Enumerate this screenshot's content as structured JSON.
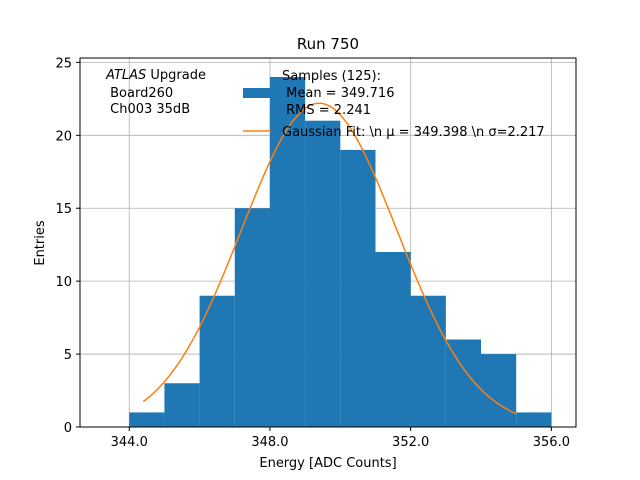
{
  "chart_data": {
    "type": "bar",
    "title": "Run 750",
    "xlabel": "Energy [ADC Counts]",
    "ylabel": "Entries",
    "xlim": [
      342.6,
      356.7
    ],
    "ylim": [
      0,
      25.3
    ],
    "xticks": [
      344.0,
      348.0,
      352.0,
      356.0
    ],
    "xtick_labels": [
      "344.0",
      "348.0",
      "352.0",
      "356.0"
    ],
    "yticks": [
      0,
      5,
      10,
      15,
      20,
      25
    ],
    "ytick_labels": [
      "0",
      "5",
      "10",
      "15",
      "20",
      "25"
    ],
    "grid": true,
    "histogram": {
      "bin_edges": [
        344,
        345,
        346,
        347,
        348,
        349,
        350,
        351,
        352,
        353,
        354,
        355,
        356
      ],
      "counts": [
        1,
        3,
        9,
        15,
        24,
        21,
        19,
        12,
        9,
        6,
        5,
        1
      ],
      "color": "#1f77b4"
    },
    "fit": {
      "type": "gaussian",
      "amplitude": 22.2,
      "mu": 349.398,
      "sigma": 2.217,
      "x_range": [
        344.4,
        355.0
      ],
      "color": "#ff7f0e"
    },
    "annotation": {
      "atlas_italic": "ATLAS",
      "atlas_rest": " Upgrade",
      "line2": " Board260",
      "line3": " Ch003 35dB"
    },
    "legend": {
      "placement": "top-right",
      "samples_lines": [
        "Samples (125):",
        " Mean = 349.716",
        " RMS = 2.241"
      ],
      "fit_label": "Gaussian Fit: \\n μ = 349.398 \\n σ=2.217"
    }
  }
}
